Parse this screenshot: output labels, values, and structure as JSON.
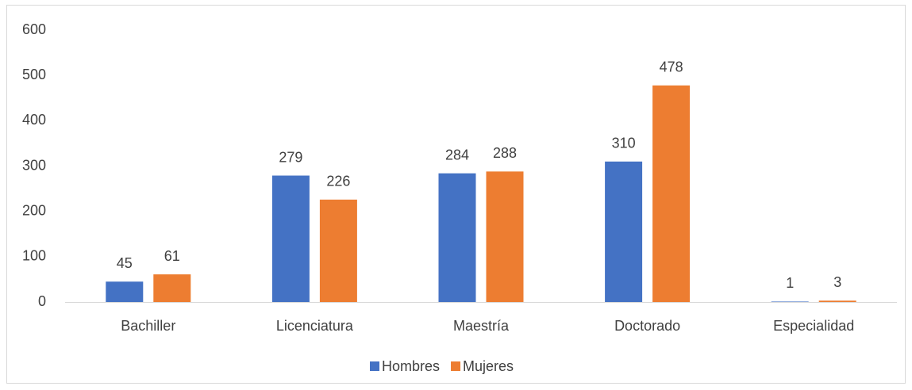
{
  "chart_data": {
    "type": "bar",
    "categories": [
      "Bachiller",
      "Licenciatura",
      "Maestría",
      "Doctorado",
      "Especialidad"
    ],
    "series": [
      {
        "name": "Hombres",
        "color": "#4472c4",
        "values": [
          45,
          279,
          284,
          310,
          1
        ]
      },
      {
        "name": "Mujeres",
        "color": "#ed7d31",
        "values": [
          61,
          226,
          288,
          478,
          3
        ]
      }
    ],
    "ylim": [
      0,
      600
    ],
    "yticks": [
      0,
      100,
      200,
      300,
      400,
      500,
      600
    ],
    "grid": false,
    "legend": "bottom",
    "data_labels": true
  }
}
